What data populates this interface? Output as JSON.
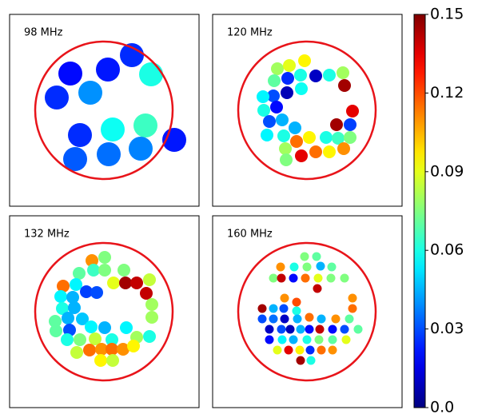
{
  "chart_data": [
    {
      "type": "scatter",
      "title": "98 MHz",
      "xlim": [
        0,
        237
      ],
      "ylim": [
        0,
        240
      ],
      "cmap": "jet",
      "x": [
        76,
        123,
        153,
        177,
        59,
        101,
        88,
        129,
        170,
        206,
        82,
        124,
        164
      ],
      "y": [
        166,
        171,
        189,
        165,
        136,
        142,
        89,
        96,
        101,
        83,
        59,
        65,
        72
      ],
      "values": [
        0.02,
        0.022,
        0.025,
        0.06,
        0.025,
        0.04,
        0.025,
        0.058,
        0.065,
        0.022,
        0.032,
        0.035,
        0.038
      ]
    },
    {
      "type": "scatter",
      "title": "120 MHz",
      "xlim": [
        0,
        237
      ],
      "ylim": [
        0,
        240
      ],
      "cmap": "jet",
      "x": [
        81,
        96,
        115,
        77,
        94,
        110,
        129,
        146,
        163,
        165,
        76,
        93,
        111,
        63,
        80,
        175,
        64,
        71,
        87,
        103,
        155,
        172,
        68,
        89,
        105,
        121,
        142,
        157,
        172,
        91,
        111,
        129,
        146,
        164,
        92
      ],
      "y": [
        172,
        176,
        182,
        157,
        160,
        164,
        163,
        164,
        167,
        151,
        138,
        142,
        147,
        137,
        124,
        119,
        120,
        106,
        108,
        98,
        102,
        102,
        89,
        88,
        81,
        86,
        86,
        85,
        86,
        72,
        63,
        68,
        68,
        72,
        58
      ],
      "values": [
        0.08,
        0.09,
        0.095,
        0.07,
        0.025,
        0.06,
        0.01,
        0.06,
        0.08,
        0.145,
        0.03,
        0.008,
        0.058,
        0.055,
        0.02,
        0.135,
        0.06,
        0.03,
        0.045,
        0.045,
        0.145,
        0.028,
        0.055,
        0.06,
        0.115,
        0.095,
        0.06,
        0.065,
        0.075,
        0.08,
        0.135,
        0.115,
        0.095,
        0.11,
        0.075
      ]
    },
    {
      "type": "scatter",
      "title": "132 MHz",
      "xlim": [
        0,
        237
      ],
      "ylim": [
        0,
        240
      ],
      "cmap": "jet",
      "x": [
        103,
        119,
        87,
        105,
        119,
        143,
        83,
        67,
        130,
        145,
        159,
        175,
        96,
        109,
        64,
        79,
        171,
        66,
        81,
        178,
        91,
        57,
        73,
        178,
        58,
        75,
        102,
        119,
        146,
        72,
        88,
        107,
        128,
        159,
        175,
        84,
        100,
        115,
        128,
        142,
        155,
        114,
        129
      ],
      "y": [
        184,
        188,
        168,
        172,
        172,
        172,
        154,
        152,
        156,
        156,
        156,
        160,
        145,
        144,
        139,
        138,
        143,
        124,
        125,
        129,
        111,
        108,
        112,
        113,
        96,
        97,
        101,
        100,
        100,
        85,
        85,
        86,
        85,
        88,
        89,
        69,
        72,
        73,
        73,
        73,
        77,
        59,
        59
      ],
      "values": [
        0.11,
        0.075,
        0.07,
        0.065,
        0.075,
        0.075,
        0.055,
        0.115,
        0.09,
        0.145,
        0.14,
        0.085,
        0.028,
        0.03,
        0.055,
        0.045,
        0.14,
        0.06,
        0.045,
        0.08,
        0.048,
        0.07,
        0.045,
        0.08,
        0.07,
        0.03,
        0.055,
        0.045,
        0.055,
        0.06,
        0.075,
        0.085,
        0.06,
        0.08,
        0.06,
        0.085,
        0.115,
        0.11,
        0.115,
        0.11,
        0.095,
        0.095,
        0.085
      ]
    },
    {
      "type": "scatter",
      "title": "160 MHz",
      "xlim": [
        0,
        237
      ],
      "ylim": [
        0,
        240
      ],
      "cmap": "jet",
      "x": [
        115,
        130,
        85,
        102,
        118,
        135,
        149,
        76,
        86,
        101,
        116,
        132,
        148,
        165,
        131,
        90,
        105,
        175,
        62,
        76,
        89,
        105,
        175,
        62,
        76,
        90,
        106,
        121,
        136,
        154,
        171,
        71,
        86,
        97,
        110,
        121,
        134,
        150,
        165,
        182,
        71,
        87,
        101,
        118,
        133,
        150,
        167,
        81,
        95,
        109,
        122,
        136,
        150,
        110,
        123
      ],
      "y": [
        189,
        189,
        176,
        176,
        176,
        177,
        176,
        162,
        162,
        162,
        162,
        162,
        162,
        162,
        149,
        137,
        132,
        137,
        124,
        124,
        124,
        121,
        124,
        111,
        111,
        111,
        111,
        113,
        111,
        111,
        111,
        98,
        98,
        98,
        98,
        98,
        98,
        98,
        98,
        98,
        85,
        85,
        85,
        85,
        85,
        85,
        85,
        72,
        72,
        72,
        72,
        72,
        72,
        59,
        59
      ],
      "values": [
        0.075,
        0.07,
        0.11,
        0.06,
        0.075,
        0.045,
        0.07,
        0.075,
        0.14,
        0.02,
        0.115,
        0.09,
        0.075,
        0.075,
        0.14,
        0.11,
        0.12,
        0.11,
        0.145,
        0.045,
        0.03,
        0.06,
        0.115,
        0.03,
        0.035,
        0.01,
        0.045,
        0.115,
        0.045,
        0.11,
        0.07,
        0.01,
        0.03,
        0.008,
        0.045,
        0.02,
        0.14,
        0.02,
        0.03,
        0.07,
        0.02,
        0.055,
        0.045,
        0.06,
        0.075,
        0.07,
        0.09,
        0.09,
        0.135,
        0.095,
        0.025,
        0.115,
        0.11,
        0.145,
        0.06
      ]
    },
    {
      "type": "colorbar",
      "cmap": "jet",
      "clim": [
        0,
        0.15
      ],
      "ticks": [
        {
          "value": 0,
          "label": "0.0"
        },
        0.03,
        0.06,
        0.09,
        0.12,
        0.15
      ]
    }
  ]
}
